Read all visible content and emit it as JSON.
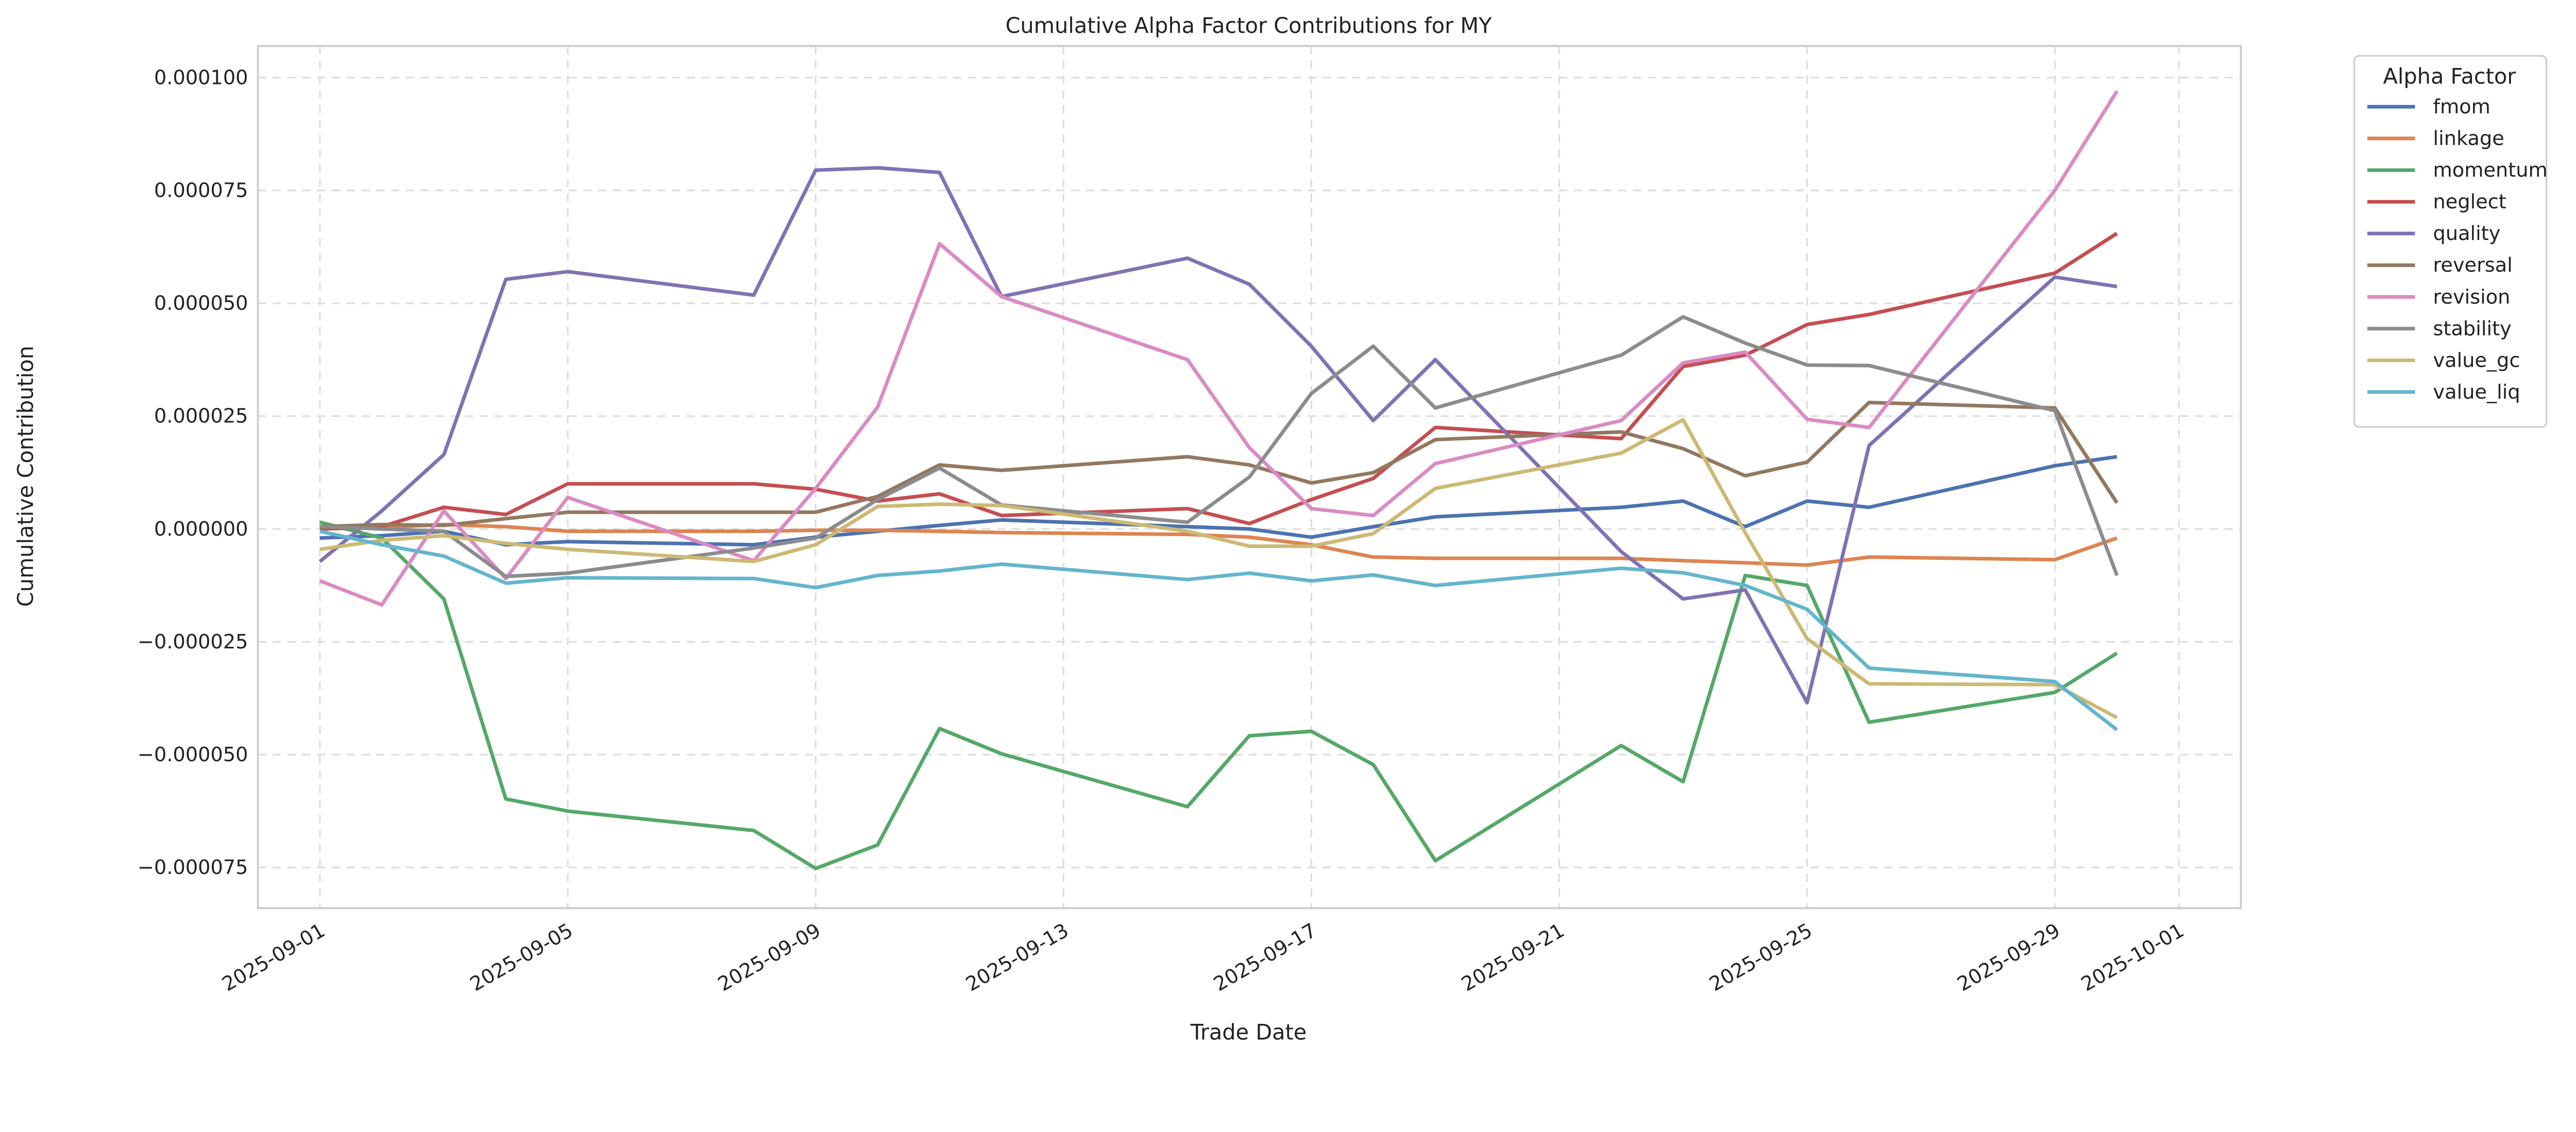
{
  "chart_data": {
    "type": "line",
    "title": "Cumulative Alpha Factor Contributions for MY",
    "xlabel": "Trade Date",
    "ylabel": "Cumulative Contribution",
    "ylim": [
      -8.4e-05,
      0.000107
    ],
    "xlim": [
      "2025-08-31",
      "2025-10-02"
    ],
    "grid": true,
    "xticks": [
      "2025-09-01",
      "2025-09-05",
      "2025-09-09",
      "2025-09-13",
      "2025-09-17",
      "2025-09-21",
      "2025-09-25",
      "2025-09-29",
      "2025-10-01"
    ],
    "yticks": [
      -7.5e-05,
      -5e-05,
      -2.5e-05,
      0,
      2.5e-05,
      5e-05,
      7.5e-05,
      0.0001
    ],
    "ytick_labels": [
      "−0.000075",
      "−0.000050",
      "−0.000025",
      "0.000000",
      "0.000025",
      "0.000050",
      "0.000075",
      "0.000100"
    ],
    "legend": {
      "title": "Alpha Factor",
      "placement": "outside-top-right"
    },
    "x": [
      "2025-09-01",
      "2025-09-02",
      "2025-09-03",
      "2025-09-04",
      "2025-09-05",
      "2025-09-08",
      "2025-09-09",
      "2025-09-10",
      "2025-09-11",
      "2025-09-12",
      "2025-09-15",
      "2025-09-16",
      "2025-09-17",
      "2025-09-18",
      "2025-09-19",
      "2025-09-22",
      "2025-09-23",
      "2025-09-24",
      "2025-09-25",
      "2025-09-26",
      "2025-09-29",
      "2025-09-30"
    ],
    "series": [
      {
        "name": "fmom",
        "color": "#4c72b0",
        "values": [
          -2e-06,
          -1.5e-06,
          -5e-07,
          -3.5e-06,
          -2.8e-06,
          -3.5e-06,
          -1.8e-06,
          -5e-07,
          8e-07,
          2e-06,
          5e-07,
          0,
          -1.8e-06,
          5e-07,
          2.7e-06,
          4.8e-06,
          6.2e-06,
          5e-07,
          6.2e-06,
          4.8e-06,
          1.4e-05,
          1.6e-05
        ]
      },
      {
        "name": "linkage",
        "color": "#dd8452",
        "values": [
          0,
          3e-07,
          1e-06,
          5e-07,
          -5e-07,
          -5e-07,
          -3e-07,
          -3e-07,
          -5e-07,
          -8e-07,
          -1.2e-06,
          -1.8e-06,
          -3.5e-06,
          -6.2e-06,
          -6.5e-06,
          -6.5e-06,
          -7e-06,
          -7.5e-06,
          -8e-06,
          -6.2e-06,
          -6.8e-06,
          -2e-06
        ]
      },
      {
        "name": "momentum",
        "color": "#55a868",
        "values": [
          1.5e-06,
          -2e-06,
          -1.55e-05,
          -5.98e-05,
          -6.25e-05,
          -6.68e-05,
          -7.52e-05,
          -7e-05,
          -4.42e-05,
          -4.98e-05,
          -6.15e-05,
          -4.58e-05,
          -4.48e-05,
          -5.22e-05,
          -7.35e-05,
          -4.8e-05,
          -5.6e-05,
          -1.03e-05,
          -1.25e-05,
          -4.28e-05,
          -3.62e-05,
          -2.75e-05
        ]
      },
      {
        "name": "neglect",
        "color": "#c44e52",
        "values": [
          0,
          5e-07,
          4.8e-06,
          3.2e-06,
          1e-05,
          1e-05,
          8.8e-06,
          6.2e-06,
          7.8e-06,
          3e-06,
          4.5e-06,
          1.2e-06,
          6.5e-06,
          1.12e-05,
          2.25e-05,
          2e-05,
          3.6e-05,
          3.85e-05,
          4.53e-05,
          4.75e-05,
          5.67e-05,
          6.55e-05
        ]
      },
      {
        "name": "quality",
        "color": "#8172b3",
        "values": [
          -7.2e-06,
          4e-06,
          1.65e-05,
          5.53e-05,
          5.7e-05,
          5.18e-05,
          7.95e-05,
          8e-05,
          7.9e-05,
          5.15e-05,
          6e-05,
          5.42e-05,
          4.05e-05,
          2.4e-05,
          3.75e-05,
          -5e-06,
          -1.55e-05,
          -1.35e-05,
          -3.85e-05,
          1.85e-05,
          5.58e-05,
          5.37e-05
        ]
      },
      {
        "name": "reversal",
        "color": "#937860",
        "values": [
          5e-07,
          1e-06,
          8e-07,
          2.3e-06,
          3.7e-06,
          3.7e-06,
          3.7e-06,
          7.2e-06,
          1.42e-05,
          1.3e-05,
          1.6e-05,
          1.42e-05,
          1.02e-05,
          1.25e-05,
          1.98e-05,
          2.15e-05,
          1.78e-05,
          1.18e-05,
          1.48e-05,
          2.8e-05,
          2.68e-05,
          5.8e-06
        ]
      },
      {
        "name": "revision",
        "color": "#da8bc3",
        "values": [
          -1.15e-05,
          -1.68e-05,
          4e-06,
          -1.1e-05,
          7e-06,
          -7e-06,
          9e-06,
          2.7e-05,
          6.32e-05,
          5.15e-05,
          3.75e-05,
          1.8e-05,
          4.5e-06,
          3e-06,
          1.45e-05,
          2.4e-05,
          3.68e-05,
          3.92e-05,
          2.43e-05,
          2.25e-05,
          7.5e-05,
          9.7e-05
        ]
      },
      {
        "name": "stability",
        "color": "#8c8c8c",
        "values": [
          5e-07,
          0,
          -5e-07,
          -1.05e-05,
          -9.8e-06,
          -4.2e-06,
          -2e-06,
          6.5e-06,
          1.35e-05,
          5.3e-06,
          1.5e-06,
          1.15e-05,
          3e-05,
          4.05e-05,
          2.68e-05,
          3.85e-05,
          4.7e-05,
          4.12e-05,
          3.63e-05,
          3.62e-05,
          2.62e-05,
          -1.03e-05
        ]
      },
      {
        "name": "value_gc",
        "color": "#ccb974",
        "values": [
          -4.5e-06,
          -2.5e-06,
          -1.5e-06,
          -3.2e-06,
          -4.5e-06,
          -7.2e-06,
          -3.5e-06,
          5e-06,
          5.5e-06,
          5.2e-06,
          -5e-07,
          -3.8e-06,
          -3.8e-06,
          -1e-06,
          9e-06,
          1.68e-05,
          2.42e-05,
          -8e-07,
          -2.43e-05,
          -3.43e-05,
          -3.45e-05,
          -4.18e-05
        ]
      },
      {
        "name": "value_liq",
        "color": "#64b5cd",
        "values": [
          -5e-07,
          -3.5e-06,
          -6e-06,
          -1.2e-05,
          -1.08e-05,
          -1.1e-05,
          -1.3e-05,
          -1.03e-05,
          -9.3e-06,
          -7.8e-06,
          -1.12e-05,
          -9.8e-06,
          -1.15e-05,
          -1.02e-05,
          -1.25e-05,
          -8.7e-06,
          -9.7e-06,
          -1.25e-05,
          -1.78e-05,
          -3.08e-05,
          -3.38e-05,
          -4.45e-05
        ]
      }
    ]
  }
}
